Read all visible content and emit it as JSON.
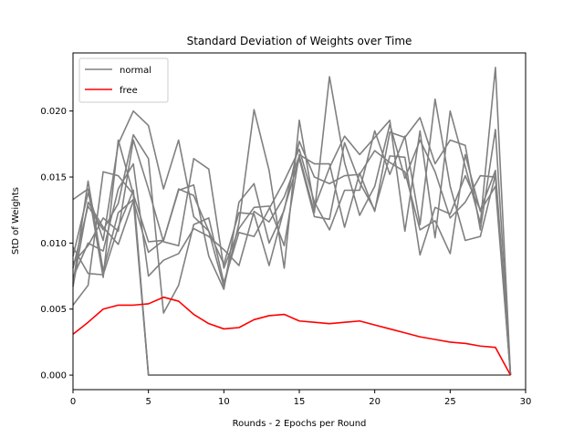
{
  "chart_data": {
    "type": "line",
    "title": "Standard Deviation of Weights over Time",
    "xlabel": "Rounds - 2 Epochs per Round",
    "ylabel": "StD of Weights",
    "xlim": [
      0,
      30
    ],
    "ylim": [
      -0.0011,
      0.0244
    ],
    "xticks": [
      0,
      5,
      10,
      15,
      20,
      25,
      30
    ],
    "xtick_labels": [
      "0",
      "5",
      "10",
      "15",
      "20",
      "25",
      "30"
    ],
    "yticks": [
      0.0,
      0.005,
      0.01,
      0.015,
      0.02
    ],
    "ytick_labels": [
      "0.000",
      "0.005",
      "0.010",
      "0.015",
      "0.020"
    ],
    "grid": false,
    "legend_position": "top-left",
    "legend": [
      {
        "label": "normal",
        "color": "#808080"
      },
      {
        "label": "free",
        "color": "#ff0000"
      }
    ],
    "x": [
      0,
      1,
      2,
      3,
      4,
      5,
      6,
      7,
      8,
      9,
      10,
      11,
      12,
      13,
      14,
      15,
      16,
      17,
      18,
      19,
      20,
      21,
      22,
      23,
      24,
      25,
      26,
      27,
      28,
      29
    ],
    "series": [
      {
        "group": "normal",
        "color": "#808080",
        "values": [
          0.0133,
          0.0141,
          0.0074,
          0.0178,
          0.0137,
          0,
          0,
          0,
          0,
          0,
          0,
          0,
          0,
          0,
          0,
          0,
          0,
          0,
          0,
          0,
          0,
          0,
          0,
          0,
          0,
          0,
          0,
          0,
          0,
          0
        ]
      },
      {
        "group": "normal",
        "color": "#808080",
        "values": [
          0.0069,
          0.0147,
          0.0079,
          0.0123,
          0.0133,
          0,
          0,
          0,
          0,
          0,
          0,
          0,
          0,
          0,
          0,
          0,
          0,
          0,
          0,
          0,
          0,
          0,
          0,
          0,
          0,
          0,
          0,
          0,
          0,
          0
        ]
      },
      {
        "group": "normal",
        "color": "#808080",
        "values": [
          0.0097,
          0.0077,
          0.0076,
          0.0112,
          0.014,
          0,
          0,
          0,
          0,
          0,
          0,
          0,
          0,
          0,
          0,
          0,
          0,
          0,
          0,
          0,
          0,
          0,
          0,
          0,
          0,
          0,
          0,
          0,
          0,
          0
        ]
      },
      {
        "group": "normal",
        "color": "#808080",
        "values": [
          0.009,
          0.0138,
          0.0102,
          0.0175,
          0.02,
          0.0189,
          0.0141,
          0.0178,
          0.012,
          0.0109,
          0.0067,
          0.0115,
          0.0201,
          0.0155,
          0.0081,
          0.0193,
          0.0127,
          0.0157,
          0.0181,
          0.0167,
          0.018,
          0.0193,
          0.0109,
          0.0185,
          0.0104,
          0.02,
          0.0158,
          0.0115,
          0.0233,
          0
        ]
      },
      {
        "group": "normal",
        "color": "#808080",
        "values": [
          0.0085,
          0.0098,
          0.0119,
          0.0109,
          0.0178,
          0.0141,
          0.0101,
          0.0098,
          0.0164,
          0.0156,
          0.0081,
          0.0111,
          0.0127,
          0.0128,
          0.0098,
          0.0167,
          0.016,
          0.016,
          0.0112,
          0.0153,
          0.0124,
          0.0184,
          0.018,
          0.0195,
          0.016,
          0.0178,
          0.0174,
          0.011,
          0.0186,
          0
        ]
      },
      {
        "group": "normal",
        "color": "#808080",
        "values": [
          0.0053,
          0.0068,
          0.0154,
          0.0151,
          0.0137,
          0.0101,
          0.0102,
          0.014,
          0.0144,
          0.009,
          0.0065,
          0.0131,
          0.0145,
          0.01,
          0.0125,
          0.0177,
          0.015,
          0.0145,
          0.0151,
          0.0152,
          0.017,
          0.0161,
          0.0154,
          0.011,
          0.0117,
          0.0092,
          0.0167,
          0.0124,
          0.0143,
          0
        ]
      },
      {
        "group": "normal",
        "color": "#808080",
        "values": [
          0.0074,
          0.01,
          0.0094,
          0.0141,
          0.016,
          0.0075,
          0.0087,
          0.0092,
          0.0111,
          0.0105,
          0.0095,
          0.0083,
          0.0124,
          0.0116,
          0.0135,
          0.0166,
          0.0123,
          0.0226,
          0.0161,
          0.0121,
          0.0143,
          0.019,
          0.0149,
          0.0178,
          0.0154,
          0.0119,
          0.0131,
          0.0151,
          0.015,
          0
        ]
      },
      {
        "group": "normal",
        "color": "#808080",
        "values": [
          0.0081,
          0.0128,
          0.011,
          0.013,
          0.0182,
          0.0164,
          0.0047,
          0.0068,
          0.0114,
          0.0119,
          0.007,
          0.0108,
          0.0105,
          0.0126,
          0.0147,
          0.0171,
          0.0131,
          0.011,
          0.014,
          0.014,
          0.0185,
          0.0152,
          0.0181,
          0.0114,
          0.0209,
          0.0143,
          0.0102,
          0.0105,
          0.0152,
          0
        ]
      },
      {
        "group": "normal",
        "color": "#808080",
        "values": [
          0.0067,
          0.0131,
          0.0112,
          0.0099,
          0.0132,
          0.0093,
          0.0102,
          0.0141,
          0.0136,
          0.0109,
          0.0084,
          0.0123,
          0.0122,
          0.0083,
          0.0126,
          0.0164,
          0.012,
          0.0118,
          0.0176,
          0.0146,
          0.0125,
          0.0166,
          0.0165,
          0.0091,
          0.0127,
          0.0122,
          0.0151,
          0.0125,
          0.0155,
          0
        ]
      },
      {
        "group": "free",
        "color": "#ff0000",
        "values": [
          0.0031,
          0.004,
          0.005,
          0.0053,
          0.0053,
          0.0054,
          0.0059,
          0.0056,
          0.0046,
          0.0039,
          0.0035,
          0.0036,
          0.0042,
          0.0045,
          0.0046,
          0.0041,
          0.004,
          0.0039,
          0.004,
          0.0041,
          0.0038,
          0.0035,
          0.0032,
          0.0029,
          0.0027,
          0.0025,
          0.0024,
          0.0022,
          0.0021,
          0
        ]
      }
    ]
  }
}
